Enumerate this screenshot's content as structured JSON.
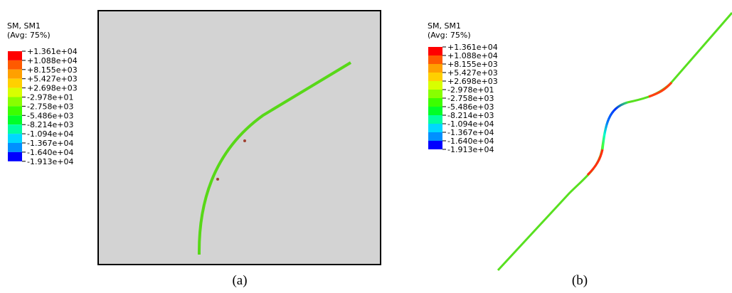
{
  "contour_colors": [
    "#ff0000",
    "#ff5a00",
    "#ffa000",
    "#ffd000",
    "#d8ff00",
    "#88ff00",
    "#3cff00",
    "#00ff28",
    "#00ffa0",
    "#00d8ff",
    "#0090ff",
    "#0000ff"
  ],
  "panels": [
    {
      "legend": {
        "title": "SM, SM1",
        "subtitle": "(Avg: 75%)",
        "labels": [
          "+1.361e+04",
          "+1.088e+04",
          "+8.155e+03",
          "+5.427e+03",
          "+2.698e+03",
          "-2.978e+01",
          "-2.758e+03",
          "-5.486e+03",
          "-8.214e+03",
          "-1.094e+04",
          "-1.367e+04",
          "-1.640e+04",
          "-1.913e+04"
        ]
      },
      "caption": "(a)"
    },
    {
      "legend": {
        "title": "SM, SM1",
        "subtitle": "(Avg: 75%)",
        "labels": [
          "+1.361e+04",
          "+1.088e+04",
          "+8.155e+03",
          "+5.427e+03",
          "+2.698e+03",
          "-2.978e+01",
          "-2.758e+03",
          "-5.486e+03",
          "-8.214e+03",
          "-1.094e+04",
          "-1.367e+04",
          "-1.640e+04",
          "-1.913e+04"
        ]
      },
      "caption": "(b)"
    }
  ]
}
